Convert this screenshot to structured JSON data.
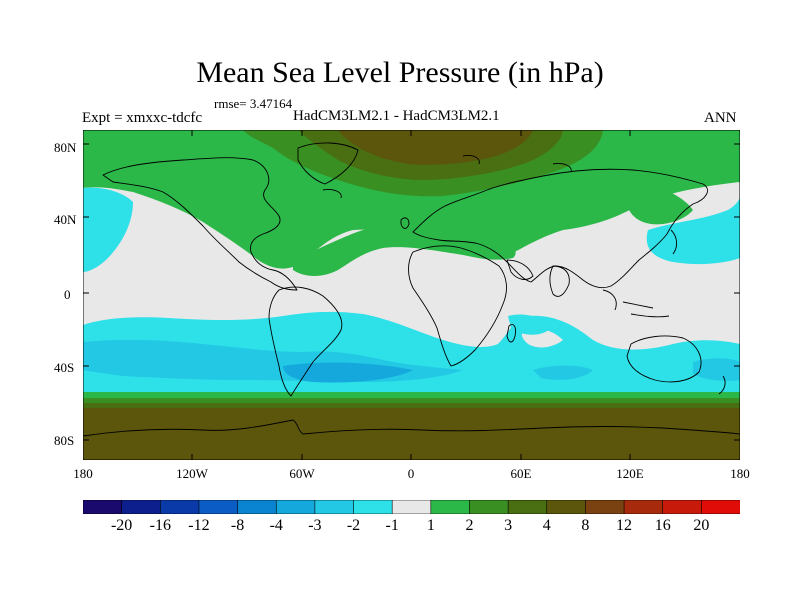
{
  "title": "Mean Sea Level Pressure (in hPa)",
  "rmse": "rmse= 3.47164",
  "expt": "Expt = xmxxc-tdcfc",
  "models": "HadCM3LM2.1 - HadCM3LM2.1",
  "season": "ANN",
  "lat_labels": [
    "80N",
    "40N",
    "0",
    "40S",
    "80S"
  ],
  "lon_labels": [
    "180",
    "120W",
    "60W",
    "0",
    "60E",
    "120E",
    "180"
  ],
  "colorbar": {
    "labels": [
      "-20",
      "-16",
      "-12",
      "-8",
      "-4",
      "-3",
      "-2",
      "-1",
      "1",
      "2",
      "3",
      "4",
      "8",
      "12",
      "16",
      "20"
    ],
    "colors": [
      "#1a0a6e",
      "#0d1f8c",
      "#0a3aa8",
      "#0b5cc4",
      "#0a84d0",
      "#14a8dc",
      "#22c8e4",
      "#2ee0e8",
      "#e8e8e8",
      "#2bb848",
      "#3a8f22",
      "#4a6e12",
      "#5c560c",
      "#7a4210",
      "#a82a0c",
      "#c81a0a",
      "#e00c08"
    ]
  },
  "colors": {
    "neutral": "#e8e8e8",
    "cyan": "#2ee0e8",
    "light_blue": "#22c8e4",
    "mid_blue": "#14a8dc",
    "green": "#2bb848",
    "dark_green": "#3a8f22",
    "olive": "#4a6e12",
    "brown": "#5c560c",
    "coastline": "#000000"
  }
}
